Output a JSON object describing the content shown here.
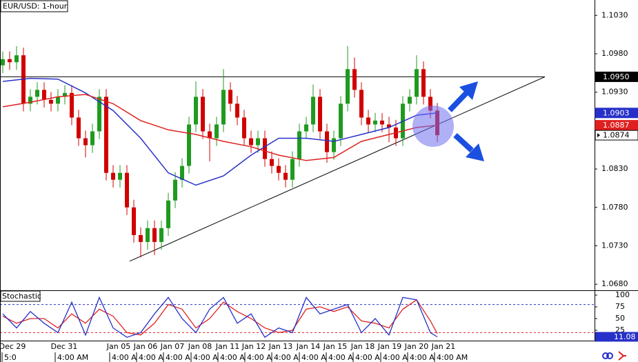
{
  "chart_data": {
    "type": "candlestick",
    "title": "EUR/USD: 1-hour",
    "up_color": "#1f9a1f",
    "down_color": "#d00000",
    "open": [
      1.0965,
      1.0973,
      1.0969,
      1.0978,
      1.0915,
      1.0924,
      1.0933,
      1.092,
      1.0915,
      1.0924,
      1.0929,
      1.0897,
      1.087,
      1.0861,
      1.0879,
      1.0924,
      1.0825,
      1.0816,
      1.0825,
      1.078,
      1.0744,
      1.0735,
      1.0753,
      1.0735,
      1.0753,
      1.0789,
      1.0816,
      1.0834,
      1.0888,
      1.0924,
      1.0879,
      1.087,
      1.0888,
      1.0933,
      1.0915,
      1.0897,
      1.087,
      1.0861,
      1.087,
      1.0843,
      1.0834,
      1.0825,
      1.0816,
      1.0843,
      1.0879,
      1.0888,
      1.0924,
      1.0879,
      1.0852,
      1.087,
      1.0915,
      1.096,
      1.0933,
      1.0897,
      1.0888,
      1.0893,
      1.0888,
      1.0884,
      1.087,
      1.0915,
      1.0924,
      1.096,
      1.0924,
      1.0906
    ],
    "high": [
      1.0983,
      1.0983,
      1.099,
      1.0988,
      1.0934,
      1.0943,
      1.0943,
      1.093,
      1.0934,
      1.0939,
      1.0939,
      1.0907,
      1.088,
      1.0889,
      1.0934,
      1.0934,
      1.0835,
      1.0835,
      1.0835,
      1.079,
      1.0754,
      1.0763,
      1.0763,
      1.0763,
      1.0799,
      1.0826,
      1.0844,
      1.0898,
      1.0944,
      1.0934,
      1.0889,
      1.0898,
      1.096,
      1.0943,
      1.0925,
      1.0907,
      1.088,
      1.088,
      1.088,
      1.0853,
      1.0844,
      1.0835,
      1.0853,
      1.0889,
      1.0898,
      1.094,
      1.0934,
      1.0889,
      1.088,
      1.0925,
      1.099,
      1.0975,
      1.0943,
      1.0907,
      1.0903,
      1.0903,
      1.0898,
      1.0894,
      1.0925,
      1.0934,
      1.0978,
      1.097,
      1.0934,
      1.0916
    ],
    "low": [
      1.0955,
      1.0959,
      1.0959,
      1.0905,
      1.0905,
      1.0914,
      1.091,
      1.0905,
      1.0905,
      1.0914,
      1.0887,
      1.086,
      1.0845,
      1.0851,
      1.0869,
      1.0815,
      1.0806,
      1.0806,
      1.077,
      1.0734,
      1.0715,
      1.0725,
      1.0718,
      1.0725,
      1.0743,
      1.0779,
      1.0806,
      1.0824,
      1.0878,
      1.0869,
      1.084,
      1.086,
      1.0878,
      1.0905,
      1.0887,
      1.086,
      1.0851,
      1.0851,
      1.0833,
      1.0824,
      1.0815,
      1.0806,
      1.0806,
      1.0833,
      1.0869,
      1.0878,
      1.0869,
      1.0838,
      1.0842,
      1.086,
      1.0905,
      1.0923,
      1.0887,
      1.0878,
      1.0878,
      1.0878,
      1.0865,
      1.086,
      1.086,
      1.0905,
      1.0914,
      1.0914,
      1.0896,
      1.0865
    ],
    "close": [
      1.0973,
      1.0969,
      1.0978,
      1.0915,
      1.0924,
      1.0933,
      1.092,
      1.0915,
      1.0924,
      1.0929,
      1.0897,
      1.087,
      1.0861,
      1.0879,
      1.0924,
      1.0825,
      1.0816,
      1.0825,
      1.078,
      1.0744,
      1.0735,
      1.0753,
      1.0735,
      1.0753,
      1.0789,
      1.0816,
      1.0834,
      1.0888,
      1.0924,
      1.0879,
      1.087,
      1.0888,
      1.0933,
      1.0915,
      1.0897,
      1.087,
      1.0861,
      1.087,
      1.0843,
      1.0834,
      1.0825,
      1.0816,
      1.0843,
      1.0879,
      1.0888,
      1.0924,
      1.0879,
      1.0852,
      1.087,
      1.0915,
      1.096,
      1.0933,
      1.0897,
      1.0888,
      1.0893,
      1.0888,
      1.0884,
      1.087,
      1.0915,
      1.0924,
      1.096,
      1.0924,
      1.0906,
      1.0874
    ],
    "xlim": [
      -0.4,
      85.8
    ],
    "ylim": [
      1.0673,
      1.105
    ],
    "yticks": [
      {
        "value": 1.103,
        "label": "1.1030"
      },
      {
        "value": 1.098,
        "label": "1.0980"
      },
      {
        "value": 1.093,
        "label": "1.0930"
      },
      {
        "value": 1.083,
        "label": "1.0830"
      },
      {
        "value": 1.078,
        "label": "1.0780"
      },
      {
        "value": 1.073,
        "label": "1.0730"
      },
      {
        "value": 1.068,
        "label": "1.0680"
      }
    ],
    "moving_averages": [
      {
        "color": "#2630c8",
        "x": [
          0,
          4,
          8,
          12,
          16,
          20,
          24,
          28,
          32,
          36,
          40,
          44,
          48,
          52,
          56,
          60,
          63
        ],
        "values": [
          1.0944,
          1.0948,
          1.0947,
          1.0929,
          1.0906,
          1.087,
          1.0825,
          1.0809,
          1.0821,
          1.0848,
          1.087,
          1.087,
          1.0866,
          1.0875,
          1.0884,
          1.09,
          1.0903
        ]
      },
      {
        "color": "#e02020",
        "x": [
          0,
          4,
          8,
          12,
          16,
          20,
          24,
          28,
          32,
          36,
          40,
          44,
          48,
          52,
          56,
          60,
          63
        ],
        "values": [
          1.0911,
          1.0917,
          1.0924,
          1.0927,
          1.0915,
          1.0893,
          1.0881,
          1.0875,
          1.0866,
          1.0859,
          1.0848,
          1.0841,
          1.0845,
          1.0866,
          1.0875,
          1.0884,
          1.0887
        ]
      }
    ],
    "levels": [
      {
        "x": [
          -0.4,
          78.6
        ],
        "y": [
          1.095,
          1.095
        ]
      },
      {
        "x": [
          18.4,
          78.6
        ],
        "y": [
          1.071,
          1.095
        ]
      }
    ],
    "price_tags": [
      {
        "value": 1.095,
        "label": "1.0950",
        "color": "#000000"
      },
      {
        "value": 1.0903,
        "label": "1.0903",
        "color": "#2630c8"
      },
      {
        "value": 1.0887,
        "label": "1.0887",
        "color": "#e02020"
      },
      {
        "value": 1.0874,
        "label": "1.0874",
        "color": "#ffffff"
      }
    ],
    "date_labels": [
      {
        "value": 1.4,
        "label": "Dec 29"
      },
      {
        "value": 8.9,
        "label": "Dec 31"
      },
      {
        "value": 16.8,
        "label": "Jan 05"
      },
      {
        "value": 20.7,
        "label": "Jan 06"
      },
      {
        "value": 24.6,
        "label": "Jan 07"
      },
      {
        "value": 28.6,
        "label": "Jan 08"
      },
      {
        "value": 32.6,
        "label": "Jan 11"
      },
      {
        "value": 36.4,
        "label": "Jan 12"
      },
      {
        "value": 40.3,
        "label": "Jan 13"
      },
      {
        "value": 44.3,
        "label": "Jan 14"
      },
      {
        "value": 48.2,
        "label": "Jan 15"
      },
      {
        "value": 52.2,
        "label": "Jan 18"
      },
      {
        "value": 56.1,
        "label": "Jan 19"
      },
      {
        "value": 60,
        "label": "Jan 20"
      },
      {
        "value": 63.9,
        "label": "Jan 21"
      }
    ],
    "time_labels": [
      {
        "value": -0.1,
        "label": "5:0"
      },
      {
        "value": 7.6,
        "label": "4:00 AM"
      },
      {
        "value": 15.5,
        "label": "4:00 AM"
      },
      {
        "value": 19.4,
        "label": "4:00 AM"
      },
      {
        "value": 23.3,
        "label": "4:00 AM"
      },
      {
        "value": 27.3,
        "label": "4:00 AM"
      },
      {
        "value": 31.2,
        "label": "4:00 AM"
      },
      {
        "value": 35.1,
        "label": "4:00 AM"
      },
      {
        "value": 39,
        "label": "4:00 AM"
      },
      {
        "value": 43,
        "label": "4:00 AM"
      },
      {
        "value": 46.9,
        "label": "4:00 AM"
      },
      {
        "value": 50.8,
        "label": "4:00 AM"
      },
      {
        "value": 54.8,
        "label": "4:00 AM"
      },
      {
        "value": 58.7,
        "label": "4:00 AM"
      },
      {
        "value": 62.6,
        "label": "4:00 AM"
      }
    ],
    "stochastic": {
      "title": "Stochastic",
      "ylim": [
        5.9,
        108.8
      ],
      "yticks": [
        100,
        75,
        50,
        25
      ],
      "levels": [
        {
          "value": 80,
          "color": "#2630c8"
        },
        {
          "value": 20,
          "color": "#e02020"
        }
      ],
      "x": [
        0,
        2,
        4,
        6,
        8,
        10,
        12,
        14,
        16,
        18,
        20,
        22,
        24,
        26,
        28,
        30,
        32,
        34,
        36,
        38,
        40,
        42,
        44,
        46,
        48,
        50,
        52,
        54,
        56,
        58,
        60,
        62,
        63
      ],
      "k": {
        "color": "#2630c8",
        "values": [
          60,
          30,
          65,
          40,
          20,
          85,
          15,
          95,
          30,
          10,
          20,
          60,
          95,
          50,
          20,
          70,
          95,
          40,
          60,
          10,
          30,
          20,
          95,
          60,
          70,
          80,
          20,
          50,
          15,
          95,
          90,
          20,
          11.08
        ]
      },
      "d": {
        "color": "#e02020",
        "values": [
          55,
          40,
          50,
          50,
          30,
          60,
          40,
          70,
          55,
          20,
          15,
          40,
          80,
          70,
          30,
          50,
          85,
          65,
          50,
          30,
          20,
          25,
          70,
          75,
          65,
          75,
          45,
          40,
          30,
          70,
          90,
          45,
          18
        ]
      },
      "value_tag": 11.08
    }
  }
}
